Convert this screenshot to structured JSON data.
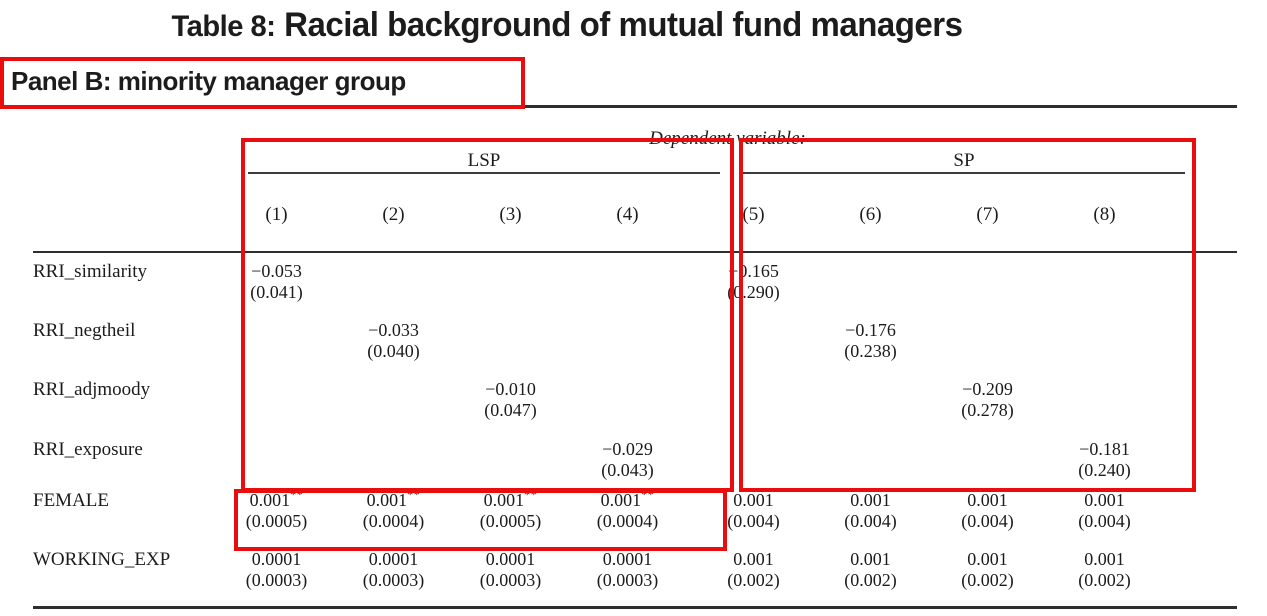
{
  "title": {
    "prefix": "Table 8:",
    "text": " Racial background of mutual fund managers"
  },
  "panel_label": "Panel B: minority manager group",
  "table": {
    "dependent_variable_label": "Dependent variable:",
    "groups": [
      {
        "label": "LSP"
      },
      {
        "label": "SP"
      }
    ],
    "column_numbers": [
      "(1)",
      "(2)",
      "(3)",
      "(4)",
      "(5)",
      "(6)",
      "(7)",
      "(8)"
    ],
    "rows": [
      {
        "label": "RRI_similarity",
        "cells": [
          {
            "coef": "−0.053",
            "se": "(0.041)"
          },
          null,
          null,
          null,
          {
            "coef": "−0.165",
            "se": "(0.290)"
          },
          null,
          null,
          null
        ]
      },
      {
        "label": "RRI_negtheil",
        "cells": [
          null,
          {
            "coef": "−0.033",
            "se": "(0.040)"
          },
          null,
          null,
          null,
          {
            "coef": "−0.176",
            "se": "(0.238)"
          },
          null,
          null
        ]
      },
      {
        "label": "RRI_adjmoody",
        "cells": [
          null,
          null,
          {
            "coef": "−0.010",
            "se": "(0.047)"
          },
          null,
          null,
          null,
          {
            "coef": "−0.209",
            "se": "(0.278)"
          },
          null
        ]
      },
      {
        "label": "RRI_exposure",
        "cells": [
          null,
          null,
          null,
          {
            "coef": "−0.029",
            "se": "(0.043)"
          },
          null,
          null,
          null,
          {
            "coef": "−0.181",
            "se": "(0.240)"
          }
        ]
      },
      {
        "label": "FEMALE",
        "cells": [
          {
            "coef": "0.001",
            "stars": "**",
            "se": "(0.0005)"
          },
          {
            "coef": "0.001",
            "stars": "**",
            "se": "(0.0004)"
          },
          {
            "coef": "0.001",
            "stars": "**",
            "se": "(0.0005)"
          },
          {
            "coef": "0.001",
            "stars": "**",
            "se": "(0.0004)"
          },
          {
            "coef": "0.001",
            "se": "(0.004)"
          },
          {
            "coef": "0.001",
            "se": "(0.004)"
          },
          {
            "coef": "0.001",
            "se": "(0.004)"
          },
          {
            "coef": "0.001",
            "se": "(0.004)"
          }
        ]
      },
      {
        "label": "WORKING_EXP",
        "cells": [
          {
            "coef": "0.0001",
            "se": "(0.0003)"
          },
          {
            "coef": "0.0001",
            "se": "(0.0003)"
          },
          {
            "coef": "0.0001",
            "se": "(0.0003)"
          },
          {
            "coef": "0.0001",
            "se": "(0.0003)"
          },
          {
            "coef": "0.001",
            "se": "(0.002)"
          },
          {
            "coef": "0.001",
            "se": "(0.002)"
          },
          {
            "coef": "0.001",
            "se": "(0.002)"
          },
          {
            "coef": "0.001",
            "se": "(0.002)"
          }
        ]
      }
    ]
  },
  "annotations": {
    "highlight_color": "#e90d0d",
    "boxes": [
      "panel-title",
      "lsp-column-group",
      "sp-column-group",
      "female-lsp-values"
    ]
  }
}
